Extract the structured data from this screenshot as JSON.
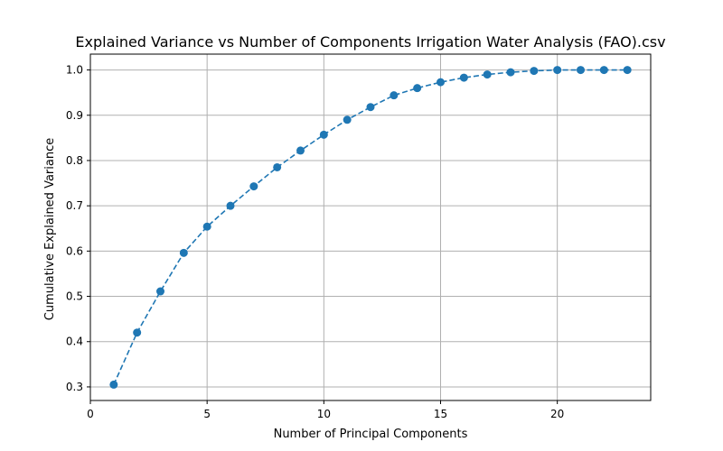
{
  "chart_data": {
    "type": "line",
    "title": "Explained Variance vs Number of Components Irrigation Water Analysis (FAO).csv",
    "xlabel": "Number of Principal Components",
    "ylabel": "Cumulative Explained Variance",
    "xlim": [
      0,
      24
    ],
    "ylim": [
      0.27,
      1.035
    ],
    "xticks": [
      0,
      5,
      10,
      15,
      20
    ],
    "xtick_labels": [
      "0",
      "5",
      "10",
      "15",
      "20"
    ],
    "yticks": [
      0.3,
      0.4,
      0.5,
      0.6,
      0.7,
      0.8,
      0.9,
      1.0
    ],
    "ytick_labels": [
      "0.3",
      "0.4",
      "0.5",
      "0.6",
      "0.7",
      "0.8",
      "0.9",
      "1.0"
    ],
    "grid": true,
    "line_style": "dashed",
    "marker": "circle",
    "color": "#1f77b4",
    "x": [
      1,
      2,
      3,
      4,
      5,
      6,
      7,
      8,
      9,
      10,
      11,
      12,
      13,
      14,
      15,
      16,
      17,
      18,
      19,
      20,
      21,
      22,
      23
    ],
    "y": [
      0.305,
      0.42,
      0.511,
      0.596,
      0.654,
      0.7,
      0.743,
      0.785,
      0.822,
      0.857,
      0.89,
      0.918,
      0.944,
      0.96,
      0.973,
      0.983,
      0.99,
      0.995,
      0.998,
      1.0,
      1.0,
      1.0,
      1.0
    ]
  }
}
